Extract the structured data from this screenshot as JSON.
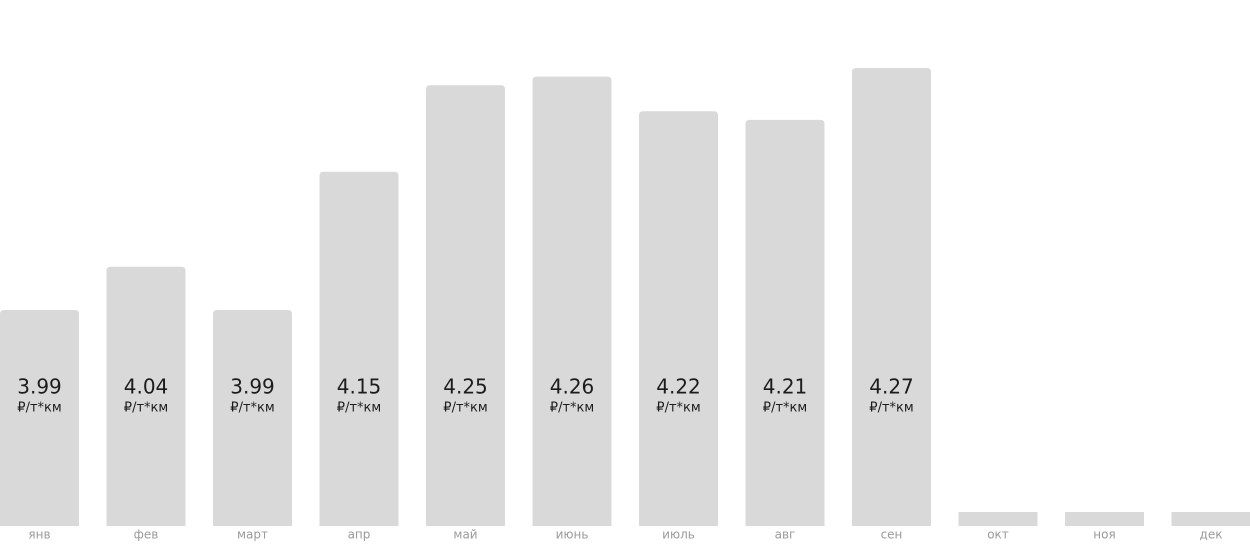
{
  "chart_data": {
    "type": "bar",
    "categories": [
      "янв",
      "фев",
      "март",
      "апр",
      "май",
      "июнь",
      "июль",
      "авг",
      "сен",
      "окт",
      "ноя",
      "дек"
    ],
    "values": [
      3.99,
      4.04,
      3.99,
      4.15,
      4.25,
      4.26,
      4.22,
      4.21,
      4.27,
      null,
      null,
      null
    ],
    "unit": "₽/т*км",
    "color": "#d9d9d9",
    "ylim": [
      3.74,
      4.27
    ]
  }
}
